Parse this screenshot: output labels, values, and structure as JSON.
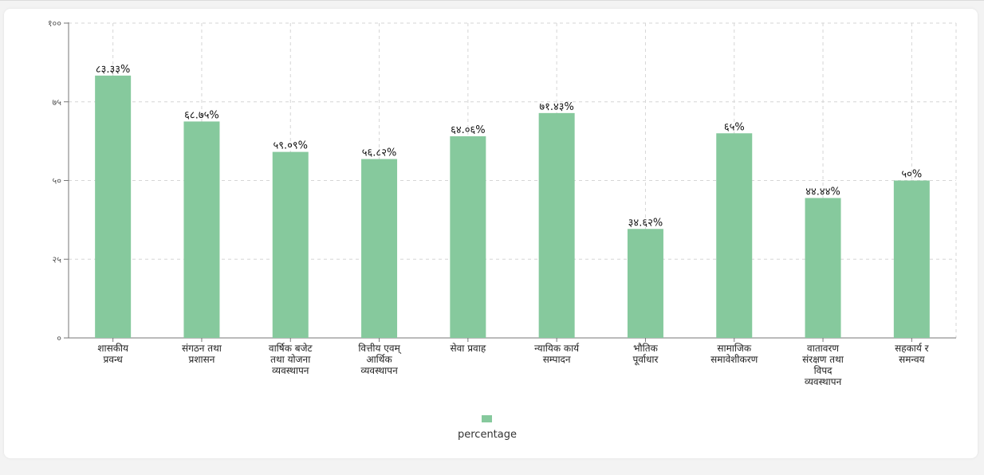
{
  "chart_data": {
    "type": "bar",
    "categories": [
      [
        "शासकीय",
        "प्रवन्ध"
      ],
      [
        "संगठन तथा",
        "प्रशासन"
      ],
      [
        "वार्षिक बजेट",
        "तथा योजना",
        "व्यवस्थापन"
      ],
      [
        "वित्तीय एवम्",
        "आर्थिक",
        "व्यवस्थापन"
      ],
      [
        "सेवा प्रवाह"
      ],
      [
        "न्यायिक कार्य",
        "सम्पादन"
      ],
      [
        "भौतिक",
        "पूर्वाधार"
      ],
      [
        "सामाजिक",
        "समावेशीकरण"
      ],
      [
        "वातावरण",
        "संरक्षण तथा",
        "विपद",
        "व्यवस्थापन"
      ],
      [
        "सहकार्य र",
        "समन्वय"
      ]
    ],
    "values": [
      83.33,
      68.75,
      59.09,
      56.82,
      64.06,
      71.43,
      34.62,
      65,
      44.44,
      50
    ],
    "value_labels": [
      "८३.३३%",
      "६८.७५%",
      "५९.०९%",
      "५६.८२%",
      "६४.०६%",
      "७१.४३%",
      "३४.६२%",
      "६५%",
      "४४.४४%",
      "५०%"
    ],
    "y_ticks": [
      0,
      25,
      50,
      75,
      100
    ],
    "y_tick_labels": [
      "०",
      "२५",
      "५०",
      "७५",
      "१००"
    ],
    "ylim": [
      0,
      100
    ],
    "series": [
      {
        "name": "percentage"
      }
    ],
    "legend_position": "bottom-center",
    "grid": true,
    "bar_color": "#86c99d"
  }
}
